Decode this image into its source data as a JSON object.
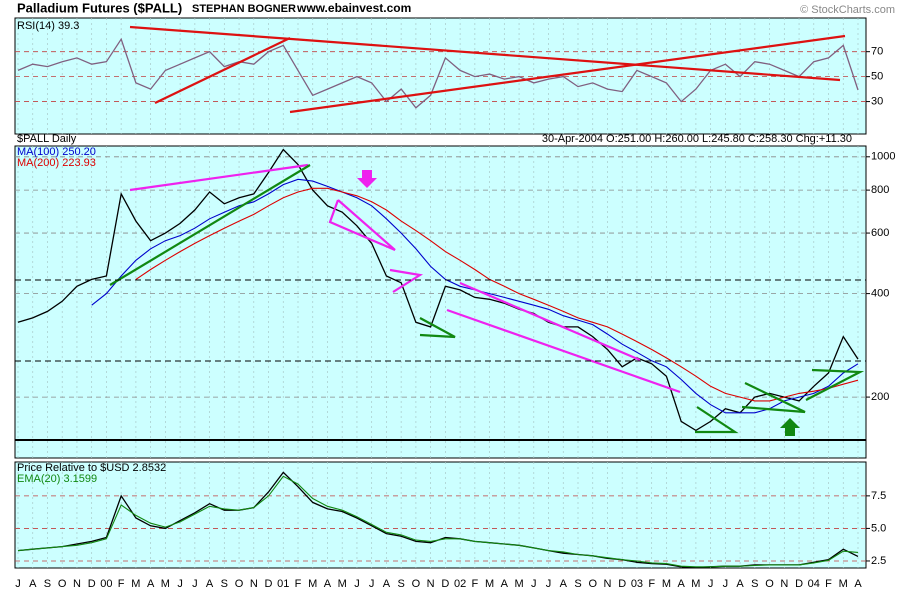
{
  "header": {
    "title": "Palladium Futures ($PALL)",
    "author": "STEPHAN BOGNER",
    "site": "www.ebainvest.com",
    "copyright": "© StockCharts.com"
  },
  "chart_data": [
    {
      "type": "line",
      "label": "RSI(14) 39.3",
      "ylim": [
        4,
        97
      ],
      "yticks": [
        70,
        50,
        30
      ],
      "series": [
        {
          "color": "#806080",
          "values": [
            55,
            60,
            58,
            62,
            65,
            60,
            62,
            80,
            45,
            40,
            55,
            60,
            65,
            70,
            58,
            62,
            60,
            70,
            75,
            55,
            35,
            40,
            45,
            50,
            45,
            30,
            40,
            25,
            35,
            65,
            55,
            50,
            52,
            48,
            50,
            45,
            48,
            50,
            42,
            45,
            40,
            38,
            55,
            50,
            45,
            30,
            40,
            55,
            60,
            50,
            62,
            60,
            55,
            50,
            62,
            65,
            75,
            39.3
          ]
        }
      ]
    },
    {
      "type": "line",
      "label": "$PALL Daily",
      "quote": "30-Apr-2004 O:251.00 H:260.00 L:245.80 C:258.30 Chg:+11.30",
      "log": true,
      "ylim": [
        133,
        1075
      ],
      "yticks": [
        1000,
        800,
        600,
        400,
        200
      ],
      "series": [
        {
          "color": "#000000",
          "values": [
            330,
            340,
            355,
            380,
            420,
            440,
            450,
            780,
            650,
            570,
            600,
            640,
            700,
            790,
            730,
            760,
            780,
            900,
            1050,
            950,
            800,
            720,
            690,
            630,
            560,
            450,
            430,
            330,
            320,
            420,
            410,
            390,
            385,
            375,
            360,
            350,
            330,
            320,
            320,
            300,
            275,
            245,
            260,
            250,
            230,
            170,
            160,
            170,
            185,
            180,
            200,
            205,
            200,
            195,
            215,
            235,
            300,
            258
          ]
        },
        {
          "name": "MA(100) 250.20",
          "color": "#0000cc",
          "values": [
            null,
            null,
            null,
            null,
            null,
            370,
            400,
            450,
            500,
            540,
            570,
            590,
            620,
            660,
            690,
            720,
            740,
            780,
            830,
            860,
            850,
            820,
            790,
            760,
            720,
            660,
            600,
            540,
            480,
            440,
            420,
            410,
            400,
            390,
            380,
            370,
            360,
            345,
            335,
            325,
            305,
            285,
            270,
            255,
            245,
            225,
            205,
            190,
            180,
            180,
            180,
            185,
            195,
            200,
            205,
            215,
            235,
            250
          ]
        },
        {
          "name": "MA(200) 223.93",
          "color": "#dd0000",
          "values": [
            null,
            null,
            null,
            null,
            null,
            null,
            null,
            null,
            440,
            470,
            500,
            530,
            560,
            590,
            620,
            650,
            680,
            720,
            760,
            790,
            810,
            810,
            790,
            770,
            740,
            700,
            650,
            610,
            570,
            530,
            500,
            470,
            440,
            420,
            400,
            385,
            370,
            355,
            340,
            330,
            320,
            305,
            290,
            275,
            260,
            245,
            230,
            215,
            205,
            200,
            195,
            195,
            200,
            205,
            208,
            212,
            218,
            224
          ]
        }
      ]
    },
    {
      "type": "line",
      "ylim": [
        1.96,
        10.1
      ],
      "yticks": [
        7.5,
        {
          "value": 5,
          "label": "5.0"
        },
        2.5
      ],
      "categories": [
        "J",
        "A",
        "S",
        "O",
        "N",
        "D",
        "00",
        "F",
        "M",
        "A",
        "M",
        "J",
        "J",
        "A",
        "S",
        "O",
        "N",
        "D",
        "01",
        "F",
        "M",
        "A",
        "M",
        "J",
        "J",
        "A",
        "S",
        "O",
        "N",
        "D",
        "02",
        "F",
        "M",
        "A",
        "M",
        "J",
        "J",
        "A",
        "S",
        "O",
        "N",
        "D",
        "03",
        "F",
        "M",
        "A",
        "M",
        "J",
        "J",
        "A",
        "S",
        "O",
        "N",
        "D",
        "04",
        "F",
        "M",
        "A"
      ],
      "series": [
        {
          "name": "Price Relative to $USD 2.8532",
          "color": "#000000",
          "values": [
            3.3,
            3.4,
            3.5,
            3.6,
            3.8,
            4.0,
            4.3,
            7.5,
            5.8,
            5.2,
            5.0,
            5.6,
            6.2,
            6.9,
            6.4,
            6.4,
            6.6,
            7.8,
            9.3,
            8.2,
            7.0,
            6.5,
            6.3,
            5.8,
            5.2,
            4.6,
            4.4,
            4.0,
            3.9,
            4.3,
            4.2,
            4.0,
            3.9,
            3.8,
            3.7,
            3.5,
            3.3,
            3.1,
            3.0,
            2.9,
            2.7,
            2.6,
            2.4,
            2.3,
            2.25,
            2.05,
            2.0,
            2.05,
            2.1,
            2.1,
            2.2,
            2.2,
            2.2,
            2.2,
            2.4,
            2.6,
            3.4,
            2.8532
          ]
        },
        {
          "name": "EMA(20) 3.1599",
          "color": "#118811",
          "values": [
            3.3,
            3.4,
            3.5,
            3.6,
            3.7,
            3.9,
            4.2,
            6.8,
            6.0,
            5.4,
            5.1,
            5.5,
            6.1,
            6.7,
            6.5,
            6.4,
            6.6,
            7.5,
            9.0,
            8.4,
            7.3,
            6.7,
            6.4,
            5.9,
            5.3,
            4.7,
            4.5,
            4.1,
            4.0,
            4.2,
            4.2,
            4.0,
            3.9,
            3.8,
            3.7,
            3.5,
            3.3,
            3.2,
            3.0,
            2.9,
            2.75,
            2.6,
            2.5,
            2.35,
            2.3,
            2.1,
            2.05,
            2.05,
            2.1,
            2.1,
            2.15,
            2.2,
            2.2,
            2.2,
            2.35,
            2.55,
            3.25,
            3.1599
          ]
        }
      ]
    }
  ]
}
